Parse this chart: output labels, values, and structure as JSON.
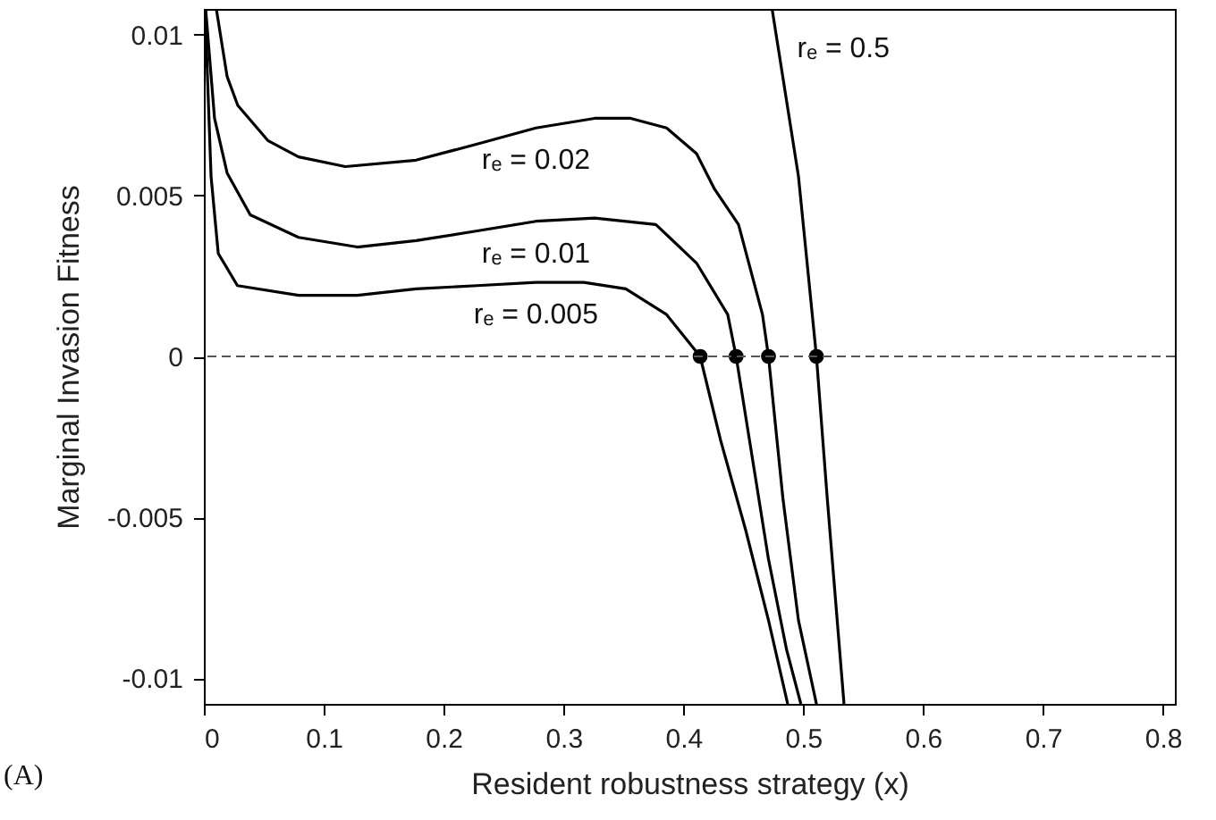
{
  "chart_data": {
    "type": "line",
    "xlabel": "Resident robustness strategy (x)",
    "ylabel": "Marginal Invasion Fitness",
    "xlim": [
      0,
      0.81
    ],
    "ylim": [
      -0.0108,
      0.0108
    ],
    "xticks": [
      0,
      0.1,
      0.2,
      0.3,
      0.4,
      0.5,
      0.6,
      0.7,
      0.8
    ],
    "yticks": [
      -0.01,
      -0.005,
      0,
      0.005,
      0.01
    ],
    "grid": false,
    "line_style": "solid",
    "series": [
      {
        "name": "rₑ = 0.02",
        "color": "#000000",
        "x": [
          0.0104,
          0.0194,
          0.0283,
          0.0537,
          0.079,
          0.118,
          0.177,
          0.228,
          0.277,
          0.326,
          0.356,
          0.386,
          0.411,
          0.426,
          0.446,
          0.466,
          0.471,
          0.483,
          0.496,
          0.511
        ],
        "values": [
          0.0108,
          0.0087,
          0.0078,
          0.0067,
          0.0062,
          0.0059,
          0.0061,
          0.0066,
          0.0071,
          0.0074,
          0.0074,
          0.0071,
          0.0063,
          0.0052,
          0.0041,
          0.0013,
          0,
          -0.0044,
          -0.0082,
          -0.0108
        ]
      },
      {
        "name": "rₑ = 0.01",
        "color": "#000000",
        "x": [
          0.0015,
          0.0089,
          0.0194,
          0.0387,
          0.079,
          0.128,
          0.177,
          0.228,
          0.277,
          0.326,
          0.377,
          0.411,
          0.437,
          0.444,
          0.459,
          0.471,
          0.486,
          0.498
        ],
        "values": [
          0.0108,
          0.0074,
          0.0057,
          0.0044,
          0.0037,
          0.0034,
          0.0036,
          0.0039,
          0.0042,
          0.0043,
          0.0041,
          0.0029,
          0.0013,
          0,
          -0.0035,
          -0.0063,
          -0.0091,
          -0.0108
        ]
      },
      {
        "name": "rₑ = 0.005",
        "color": "#000000",
        "x": [
          0.001,
          0.006,
          0.012,
          0.028,
          0.079,
          0.128,
          0.177,
          0.228,
          0.277,
          0.317,
          0.352,
          0.386,
          0.414,
          0.431,
          0.452,
          0.471,
          0.487
        ],
        "values": [
          0.0108,
          0.0056,
          0.0032,
          0.0022,
          0.0019,
          0.0019,
          0.0021,
          0.0022,
          0.0023,
          0.0023,
          0.0021,
          0.0013,
          0,
          -0.0026,
          -0.0054,
          -0.0082,
          -0.0108
        ]
      },
      {
        "name": "rₑ = 0.5",
        "color": "#000000",
        "x": [
          0.474,
          0.496,
          0.511,
          0.52,
          0.534
        ],
        "values": [
          0.0108,
          0.0056,
          0,
          -0.0044,
          -0.0108
        ]
      },
      {
        "type": "scatter",
        "marker": "circle",
        "color": "#000000",
        "x": [
          0.414,
          0.444,
          0.471,
          0.511
        ],
        "values": [
          0,
          0,
          0,
          0
        ]
      }
    ],
    "ref_lines": [
      {
        "axis": "y",
        "value": 0,
        "line_style": "dashed",
        "color": "#555555"
      }
    ],
    "annotations": [
      "(A)"
    ]
  }
}
